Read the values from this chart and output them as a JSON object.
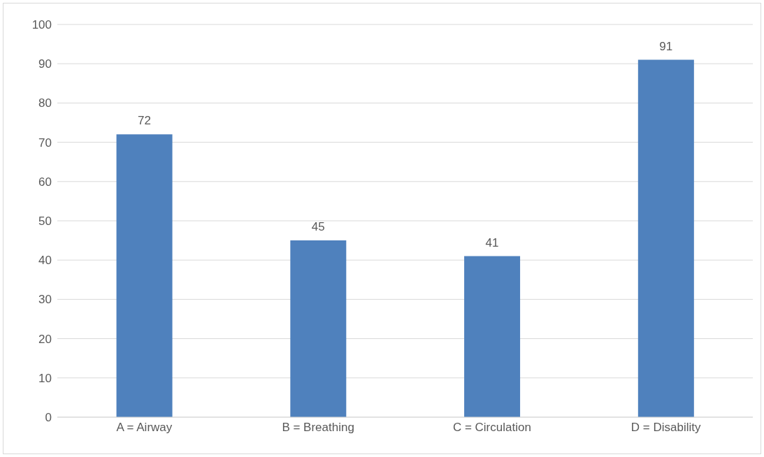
{
  "chart_data": {
    "type": "bar",
    "categories": [
      "A = Airway",
      "B = Breathing",
      "C = Circulation",
      "D = Disability"
    ],
    "values": [
      72,
      45,
      41,
      91
    ],
    "color": "#4f81bd",
    "ylim": [
      0,
      100
    ],
    "yticks": [
      0,
      10,
      20,
      30,
      40,
      50,
      60,
      70,
      80,
      90,
      100
    ],
    "grid": "y",
    "data_labels": true
  }
}
